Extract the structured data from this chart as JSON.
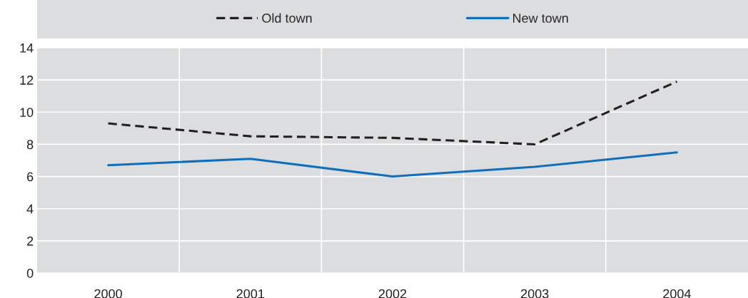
{
  "chart_data": {
    "type": "line",
    "categories": [
      "2000",
      "2001",
      "2002",
      "2003",
      "2004"
    ],
    "series": [
      {
        "name": "Old town",
        "color": "#231f20",
        "line_style": "dashed",
        "values": [
          9.3,
          8.5,
          8.4,
          8.0,
          11.9
        ]
      },
      {
        "name": "New town",
        "color": "#0f6fbd",
        "line_style": "solid",
        "values": [
          6.7,
          7.1,
          6.0,
          6.6,
          7.5
        ]
      }
    ],
    "ylim": [
      0,
      14
    ],
    "yticks": [
      0,
      2,
      4,
      6,
      8,
      10,
      12,
      14
    ],
    "grid": true,
    "legend": "top"
  }
}
